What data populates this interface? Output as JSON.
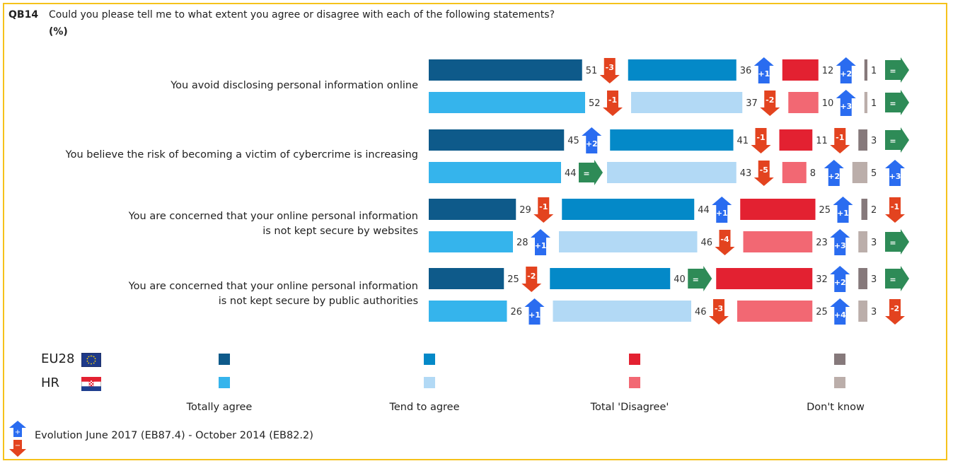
{
  "header": {
    "code": "QB14",
    "question": "Could you please tell me to what extent you agree or disagree with each of the following statements?",
    "unit": "(%)"
  },
  "chart_data": {
    "type": "bar",
    "stacked": true,
    "orientation": "horizontal",
    "categories": [
      [
        "You avoid disclosing personal information online"
      ],
      [
        "You believe the risk of becoming a victim of cybercrime is increasing"
      ],
      [
        "You are concerned that your online personal information",
        "is not kept secure by websites"
      ],
      [
        "You are concerned that your online personal information",
        "is not kept secure by public authorities"
      ]
    ],
    "groups": [
      "EU28",
      "HR"
    ],
    "series": [
      {
        "name": "Totally agree",
        "colors": [
          "#0e5a8a",
          "#35b4ec"
        ],
        "values": {
          "EU28": [
            51,
            45,
            29,
            25
          ],
          "HR": [
            52,
            44,
            28,
            26
          ]
        },
        "change": {
          "EU28": [
            "-3",
            "+2",
            "-1",
            "-2"
          ],
          "HR": [
            "-1",
            "=",
            "+1",
            "+1"
          ]
        }
      },
      {
        "name": "Tend to agree",
        "colors": [
          "#0489c8",
          "#b2d9f5"
        ],
        "values": {
          "EU28": [
            36,
            41,
            44,
            40
          ],
          "HR": [
            37,
            43,
            46,
            46
          ]
        },
        "change": {
          "EU28": [
            "+1",
            "-1",
            "+1",
            "="
          ],
          "HR": [
            "-2",
            "-5",
            "-4",
            "-3"
          ]
        }
      },
      {
        "name": "Total 'Disagree'",
        "colors": [
          "#e32131",
          "#f26873"
        ],
        "values": {
          "EU28": [
            12,
            11,
            25,
            32
          ],
          "HR": [
            10,
            8,
            23,
            25
          ]
        },
        "change": {
          "EU28": [
            "+2",
            "-1",
            "+1",
            "+2"
          ],
          "HR": [
            "+3",
            "+2",
            "+3",
            "+4"
          ]
        }
      },
      {
        "name": "Don't know",
        "colors": [
          "#86797b",
          "#bbaeaa"
        ],
        "values": {
          "EU28": [
            1,
            3,
            2,
            3
          ],
          "HR": [
            1,
            5,
            3,
            3
          ]
        },
        "change": {
          "EU28": [
            "=",
            "=",
            "-1",
            "="
          ],
          "HR": [
            "=",
            "+3",
            "=",
            "-2"
          ]
        }
      }
    ],
    "change_colors": {
      "up": "#2a6cf0",
      "down": "#e3431f",
      "equal": "#2e8b57"
    }
  },
  "legend": {
    "eu_label": "EU28",
    "hr_label": "HR",
    "evolution_label": "Evolution June 2017 (EB87.4)  - October 2014 (EB82.2)"
  }
}
